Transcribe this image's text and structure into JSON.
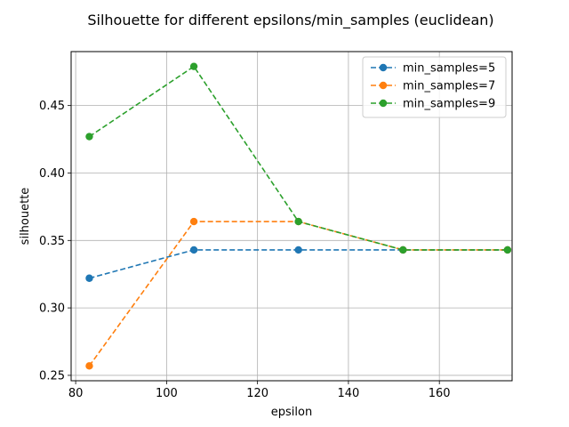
{
  "chart_data": {
    "type": "line",
    "title": "Silhouette for different epsilons/min_samples (euclidean)",
    "xlabel": "epsilon",
    "ylabel": "silhouette",
    "xlim": [
      79,
      176
    ],
    "ylim": [
      0.246,
      0.49
    ],
    "xticks": [
      80,
      100,
      120,
      140,
      160
    ],
    "yticks": [
      0.25,
      0.3,
      0.35,
      0.4,
      0.45
    ],
    "xtick_labels": [
      "80",
      "100",
      "120",
      "140",
      "160"
    ],
    "ytick_labels": [
      "0.25",
      "0.30",
      "0.35",
      "0.40",
      "0.45"
    ],
    "grid": true,
    "legend_position": "top-right",
    "x": [
      83,
      106,
      129,
      152,
      175
    ],
    "series": [
      {
        "name": "min_samples=5",
        "color": "#1f77b4",
        "values": [
          0.322,
          0.343,
          0.343,
          0.343,
          0.343
        ]
      },
      {
        "name": "min_samples=7",
        "color": "#ff7f0e",
        "values": [
          0.257,
          0.364,
          0.364,
          0.343,
          0.343
        ]
      },
      {
        "name": "min_samples=9",
        "color": "#2ca02c",
        "values": [
          0.427,
          0.479,
          0.364,
          0.343,
          0.343
        ]
      }
    ]
  }
}
